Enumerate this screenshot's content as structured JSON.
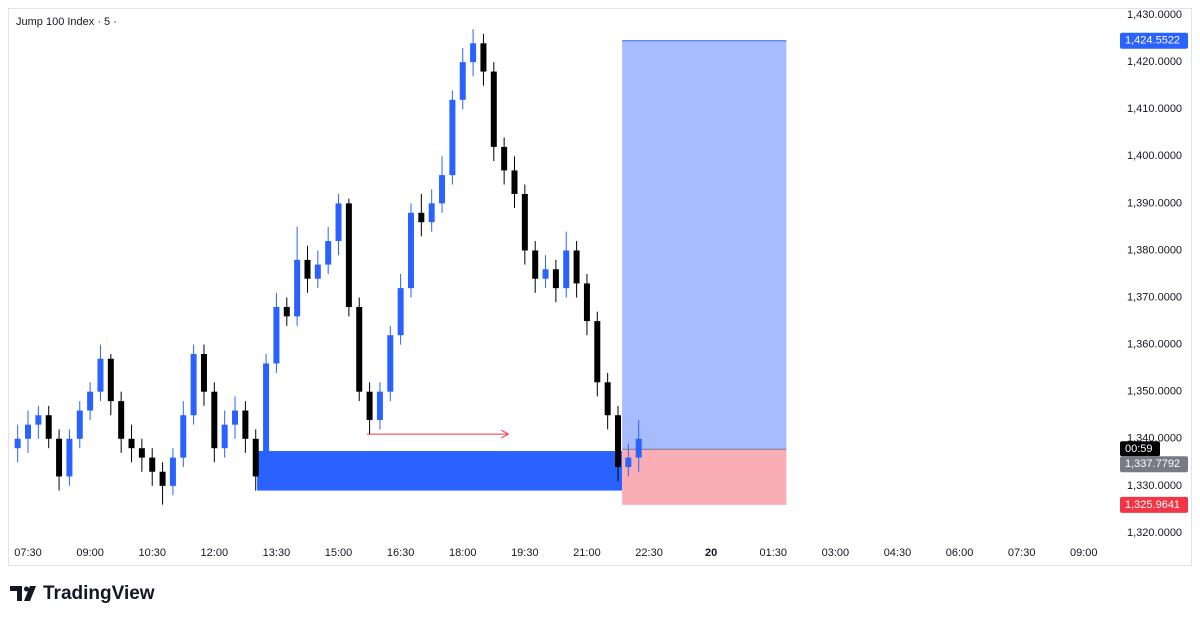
{
  "chart_data": {
    "type": "candlestick",
    "title": "Jump 100 Index · 5 ·",
    "brand": "TradingView",
    "up_color": "#2962ff",
    "down_color": "#000000",
    "x": [
      -15,
      0,
      15,
      30,
      45,
      60,
      75,
      90,
      105,
      120,
      135,
      150,
      165,
      180,
      195,
      210,
      225,
      240,
      255,
      270,
      285,
      300,
      315,
      330,
      345,
      360,
      375,
      390,
      405,
      420,
      435,
      450,
      465,
      480,
      495,
      510,
      525,
      540,
      555,
      570,
      585,
      600,
      615,
      630,
      645,
      660,
      675,
      690,
      705,
      720,
      735,
      750,
      765,
      780,
      795,
      810,
      825,
      840,
      855,
      870,
      885
    ],
    "open": [
      1338,
      1340,
      1343,
      1345,
      1340,
      1332,
      1340,
      1346,
      1350,
      1357,
      1348,
      1340,
      1338,
      1336,
      1333,
      1330,
      1336,
      1345,
      1358,
      1350,
      1338,
      1343,
      1346,
      1340,
      1332,
      1356,
      1368,
      1366,
      1378,
      1374,
      1377,
      1382,
      1390,
      1368,
      1350,
      1344,
      1350,
      1362,
      1372,
      1388,
      1386,
      1390,
      1396,
      1412,
      1420,
      1424,
      1418,
      1402,
      1397,
      1392,
      1380,
      1374,
      1376,
      1372,
      1380,
      1373,
      1365,
      1352,
      1345,
      1334,
      1336
    ],
    "high": [
      1343,
      1346,
      1347,
      1347,
      1342,
      1342,
      1348,
      1352,
      1360,
      1358,
      1350,
      1343,
      1340,
      1338,
      1335,
      1338,
      1348,
      1360,
      1360,
      1352,
      1346,
      1349,
      1348,
      1342,
      1358,
      1371,
      1370,
      1385,
      1381,
      1380,
      1385,
      1392,
      1391,
      1370,
      1352,
      1352,
      1364,
      1375,
      1390,
      1392,
      1393,
      1400,
      1414,
      1423,
      1427,
      1426,
      1420,
      1404,
      1400,
      1394,
      1382,
      1379,
      1378,
      1384,
      1382,
      1375,
      1367,
      1354,
      1347,
      1339,
      1344
    ],
    "low": [
      1335,
      1337,
      1340,
      1338,
      1329,
      1330,
      1338,
      1344,
      1348,
      1345,
      1337,
      1335,
      1333,
      1330,
      1326,
      1328,
      1334,
      1343,
      1347,
      1335,
      1336,
      1340,
      1337,
      1329,
      1330,
      1354,
      1364,
      1364,
      1371,
      1372,
      1375,
      1379,
      1366,
      1348,
      1341,
      1342,
      1348,
      1360,
      1370,
      1383,
      1384,
      1388,
      1394,
      1410,
      1417,
      1415,
      1399,
      1394,
      1389,
      1377,
      1371,
      1372,
      1369,
      1370,
      1370,
      1362,
      1349,
      1342,
      1331,
      1332,
      1333
    ],
    "close": [
      1340,
      1343,
      1345,
      1340,
      1332,
      1340,
      1346,
      1350,
      1357,
      1348,
      1340,
      1338,
      1336,
      1333,
      1330,
      1336,
      1345,
      1358,
      1350,
      1338,
      1343,
      1346,
      1340,
      1332,
      1356,
      1368,
      1366,
      1378,
      1374,
      1377,
      1382,
      1390,
      1368,
      1350,
      1344,
      1350,
      1362,
      1372,
      1388,
      1386,
      1390,
      1396,
      1412,
      1420,
      1424,
      1418,
      1402,
      1397,
      1392,
      1380,
      1374,
      1376,
      1372,
      1380,
      1373,
      1365,
      1352,
      1345,
      1334,
      1336,
      1340
    ],
    "xlim": [
      -29,
      1568
    ],
    "xticks": [
      {
        "value": 0,
        "label": "07:30"
      },
      {
        "value": 90,
        "label": "09:00"
      },
      {
        "value": 180,
        "label": "10:30"
      },
      {
        "value": 270,
        "label": "12:00"
      },
      {
        "value": 360,
        "label": "13:30"
      },
      {
        "value": 450,
        "label": "15:00"
      },
      {
        "value": 540,
        "label": "16:30"
      },
      {
        "value": 630,
        "label": "18:00"
      },
      {
        "value": 720,
        "label": "19:30"
      },
      {
        "value": 810,
        "label": "21:00"
      },
      {
        "value": 900,
        "label": "22:30"
      },
      {
        "value": 990,
        "label": "20"
      },
      {
        "value": 1080,
        "label": "01:30"
      },
      {
        "value": 1170,
        "label": "03:00"
      },
      {
        "value": 1260,
        "label": "04:30"
      },
      {
        "value": 1350,
        "label": "06:00"
      },
      {
        "value": 1440,
        "label": "07:30"
      },
      {
        "value": 1530,
        "label": "09:00"
      }
    ],
    "ylim": [
      1318.5,
      1431.5
    ],
    "yticks": [
      {
        "value": 1320,
        "label": "1,320.0000"
      },
      {
        "value": 1330,
        "label": "1,330.0000"
      },
      {
        "value": 1340,
        "label": "1,340.0000"
      },
      {
        "value": 1350,
        "label": "1,350.0000"
      },
      {
        "value": 1360,
        "label": "1,360.0000"
      },
      {
        "value": 1370,
        "label": "1,370.0000"
      },
      {
        "value": 1380,
        "label": "1,380.0000"
      },
      {
        "value": 1390,
        "label": "1,390.0000"
      },
      {
        "value": 1400,
        "label": "1,400.0000"
      },
      {
        "value": 1410,
        "label": "1,410.0000"
      },
      {
        "value": 1420,
        "label": "1,420.0000"
      },
      {
        "value": 1430,
        "label": "1,430.0000"
      }
    ],
    "zone": {
      "start": 332,
      "end": 861,
      "top": 1337.4,
      "bottom": 1329.0,
      "color": "#2962ff"
    },
    "arrow": {
      "start": 491,
      "end": 696,
      "price": 1341.0,
      "color": "#f23645"
    },
    "position": {
      "start": 861,
      "end": 1099,
      "countdown": "00:59",
      "entry": {
        "value": 1337.7792,
        "label": "1,337.7792"
      },
      "target": {
        "value": 1424.5522,
        "label": "1,424.5522"
      },
      "stop": {
        "value": 1325.9641,
        "label": "1,325.9641"
      }
    }
  }
}
